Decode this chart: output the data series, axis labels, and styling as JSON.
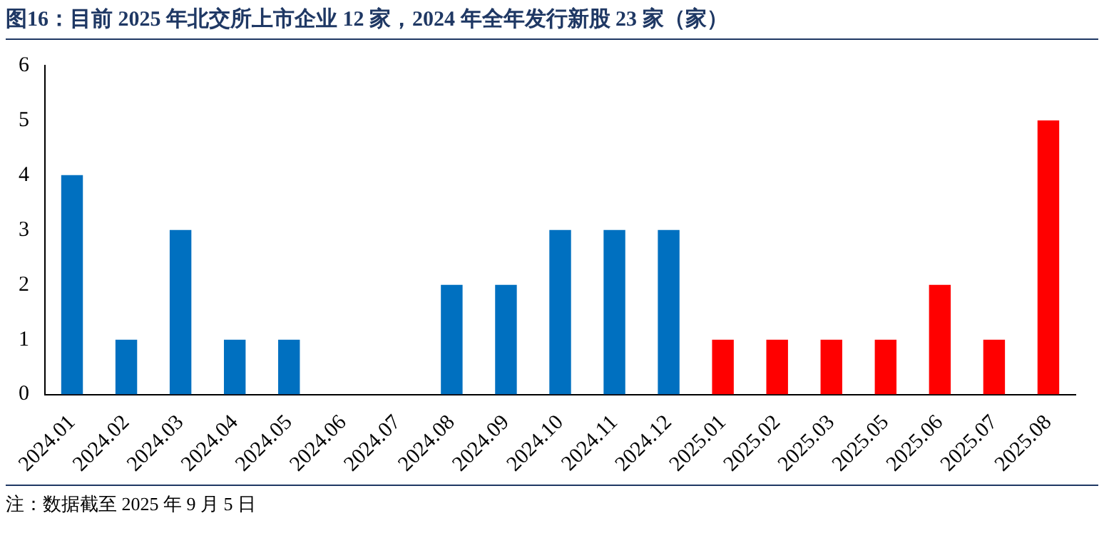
{
  "chart_data": {
    "type": "bar",
    "title": "图16：目前 2025 年北交所上市企业 12 家，2024 年全年发行新股 23 家（家）",
    "categories": [
      "2024.01",
      "2024.02",
      "2024.03",
      "2024.04",
      "2024.05",
      "2024.06",
      "2024.07",
      "2024.08",
      "2024.09",
      "2024.10",
      "2024.11",
      "2024.12",
      "2025.01",
      "2025.02",
      "2025.03",
      "2025.05",
      "2025.06",
      "2025.07",
      "2025.08"
    ],
    "values": [
      4,
      1,
      3,
      1,
      1,
      0,
      0,
      2,
      2,
      3,
      3,
      3,
      1,
      1,
      1,
      1,
      2,
      1,
      5
    ],
    "colors": [
      "#0070c0",
      "#0070c0",
      "#0070c0",
      "#0070c0",
      "#0070c0",
      "#0070c0",
      "#0070c0",
      "#0070c0",
      "#0070c0",
      "#0070c0",
      "#0070c0",
      "#0070c0",
      "#ff0000",
      "#ff0000",
      "#ff0000",
      "#ff0000",
      "#ff0000",
      "#ff0000",
      "#ff0000"
    ],
    "ylim": [
      0,
      6
    ],
    "yticks": [
      0,
      1,
      2,
      3,
      4,
      5,
      6
    ],
    "grid": false,
    "legend": false,
    "annotations": [
      "注：数据截至 2025 年 9 月 5 日"
    ]
  }
}
